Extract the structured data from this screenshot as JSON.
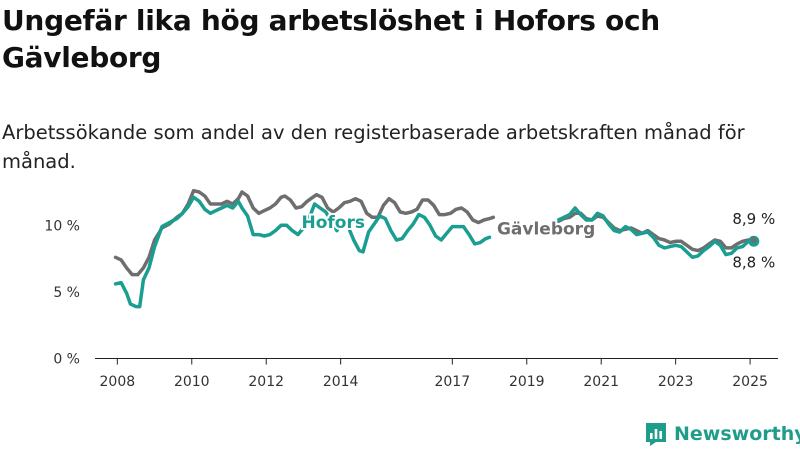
{
  "title": "Ungefär lika hög arbetslöshet i Hofors och Gävleborg",
  "subtitle": "Arbetssökande som andel av den registerbaserade arbetskraften månad för månad.",
  "brand": {
    "name": "Newsworthy",
    "color": "#1f9d8b"
  },
  "chart_data": {
    "type": "line",
    "ylim": [
      0,
      12.5
    ],
    "yticks": [
      {
        "value": 0,
        "label": "0 %"
      },
      {
        "value": 5,
        "label": "5 %"
      },
      {
        "value": 10,
        "label": "10 %"
      }
    ],
    "xlim": [
      2007.4,
      2025.75
    ],
    "xticks": [
      {
        "value": 2008,
        "label": "2008"
      },
      {
        "value": 2010,
        "label": "2010"
      },
      {
        "value": 2012,
        "label": "2012"
      },
      {
        "value": 2014,
        "label": "2014"
      },
      {
        "value": 2017,
        "label": "2017"
      },
      {
        "value": 2019,
        "label": "2019"
      },
      {
        "value": 2021,
        "label": "2021"
      },
      {
        "value": 2023,
        "label": "2023"
      },
      {
        "value": 2025,
        "label": "2025"
      }
    ],
    "grid": false,
    "series": [
      {
        "name": "Gävleborg",
        "color": "#6e6e6e",
        "end_label": "8,9 %",
        "segments": [
          [
            [
              2007.95,
              7.6
            ],
            [
              2008.1,
              7.4
            ],
            [
              2008.25,
              6.8
            ],
            [
              2008.4,
              6.3
            ],
            [
              2008.55,
              6.3
            ],
            [
              2008.7,
              6.8
            ],
            [
              2008.85,
              7.6
            ],
            [
              2009.0,
              8.9
            ],
            [
              2009.2,
              9.8
            ],
            [
              2009.4,
              10.1
            ],
            [
              2009.6,
              10.6
            ],
            [
              2009.75,
              10.9
            ],
            [
              2009.9,
              11.6
            ],
            [
              2010.05,
              12.6
            ],
            [
              2010.2,
              12.5
            ],
            [
              2010.35,
              12.2
            ],
            [
              2010.5,
              11.6
            ],
            [
              2010.65,
              11.6
            ],
            [
              2010.8,
              11.6
            ],
            [
              2010.95,
              11.8
            ],
            [
              2011.1,
              11.6
            ],
            [
              2011.25,
              12.0
            ],
            [
              2011.35,
              12.5
            ],
            [
              2011.5,
              12.2
            ],
            [
              2011.65,
              11.3
            ],
            [
              2011.8,
              10.9
            ],
            [
              2011.95,
              11.1
            ],
            [
              2012.1,
              11.3
            ],
            [
              2012.25,
              11.6
            ],
            [
              2012.4,
              12.1
            ],
            [
              2012.5,
              12.2
            ],
            [
              2012.65,
              11.9
            ],
            [
              2012.8,
              11.3
            ],
            [
              2012.95,
              11.4
            ],
            [
              2013.1,
              11.8
            ],
            [
              2013.25,
              12.1
            ],
            [
              2013.35,
              12.3
            ],
            [
              2013.5,
              12.1
            ],
            [
              2013.65,
              11.3
            ],
            [
              2013.8,
              11.0
            ],
            [
              2013.95,
              11.3
            ],
            [
              2014.1,
              11.7
            ],
            [
              2014.25,
              11.8
            ],
            [
              2014.4,
              12.0
            ],
            [
              2014.55,
              11.8
            ],
            [
              2014.7,
              10.9
            ],
            [
              2014.85,
              10.6
            ],
            [
              2015.0,
              10.6
            ],
            [
              2015.15,
              11.5
            ],
            [
              2015.3,
              12.0
            ],
            [
              2015.45,
              11.7
            ],
            [
              2015.6,
              11.0
            ],
            [
              2015.75,
              10.9
            ],
            [
              2015.9,
              11.0
            ],
            [
              2016.05,
              11.2
            ],
            [
              2016.2,
              11.9
            ],
            [
              2016.35,
              11.9
            ],
            [
              2016.5,
              11.5
            ],
            [
              2016.65,
              10.8
            ],
            [
              2016.8,
              10.8
            ],
            [
              2016.95,
              10.9
            ],
            [
              2017.1,
              11.2
            ],
            [
              2017.25,
              11.3
            ],
            [
              2017.4,
              11.0
            ],
            [
              2017.55,
              10.4
            ],
            [
              2017.7,
              10.2
            ],
            [
              2017.85,
              10.4
            ],
            [
              2018.0,
              10.5
            ],
            [
              2018.1,
              10.6
            ]
          ],
          [
            [
              2019.85,
              10.3
            ],
            [
              2020.0,
              10.5
            ],
            [
              2020.15,
              10.6
            ],
            [
              2020.3,
              10.9
            ],
            [
              2020.45,
              10.9
            ],
            [
              2020.6,
              10.5
            ],
            [
              2020.75,
              10.4
            ],
            [
              2020.9,
              10.7
            ],
            [
              2021.05,
              10.6
            ],
            [
              2021.2,
              10.2
            ],
            [
              2021.35,
              9.8
            ],
            [
              2021.5,
              9.6
            ],
            [
              2021.65,
              9.7
            ],
            [
              2021.8,
              9.8
            ],
            [
              2021.95,
              9.6
            ],
            [
              2022.1,
              9.4
            ],
            [
              2022.25,
              9.6
            ],
            [
              2022.4,
              9.3
            ],
            [
              2022.55,
              9.0
            ],
            [
              2022.7,
              8.9
            ],
            [
              2022.85,
              8.7
            ],
            [
              2023.0,
              8.8
            ],
            [
              2023.15,
              8.8
            ],
            [
              2023.3,
              8.5
            ],
            [
              2023.45,
              8.2
            ],
            [
              2023.6,
              8.1
            ],
            [
              2023.75,
              8.3
            ],
            [
              2023.9,
              8.6
            ],
            [
              2024.05,
              8.9
            ],
            [
              2024.2,
              8.8
            ],
            [
              2024.35,
              8.3
            ],
            [
              2024.5,
              8.3
            ],
            [
              2024.65,
              8.6
            ],
            [
              2024.8,
              8.8
            ],
            [
              2024.95,
              8.9
            ],
            [
              2025.1,
              8.9
            ]
          ]
        ]
      },
      {
        "name": "Hofors",
        "color": "#1a9e91",
        "end_label": "8,8 %",
        "segments": [
          [
            [
              2007.95,
              5.6
            ],
            [
              2008.1,
              5.7
            ],
            [
              2008.25,
              4.9
            ],
            [
              2008.35,
              4.1
            ],
            [
              2008.5,
              3.9
            ],
            [
              2008.6,
              3.9
            ],
            [
              2008.7,
              5.9
            ],
            [
              2008.85,
              6.8
            ],
            [
              2009.0,
              8.4
            ],
            [
              2009.2,
              9.9
            ],
            [
              2009.4,
              10.2
            ],
            [
              2009.6,
              10.5
            ],
            [
              2009.75,
              10.9
            ],
            [
              2009.9,
              11.4
            ],
            [
              2010.05,
              12.1
            ],
            [
              2010.2,
              11.8
            ],
            [
              2010.35,
              11.2
            ],
            [
              2010.5,
              10.9
            ],
            [
              2010.65,
              11.1
            ],
            [
              2010.8,
              11.3
            ],
            [
              2010.95,
              11.5
            ],
            [
              2011.1,
              11.3
            ],
            [
              2011.25,
              11.8
            ],
            [
              2011.35,
              11.3
            ],
            [
              2011.5,
              10.7
            ],
            [
              2011.65,
              9.3
            ],
            [
              2011.8,
              9.3
            ],
            [
              2011.95,
              9.2
            ],
            [
              2012.1,
              9.3
            ],
            [
              2012.25,
              9.6
            ],
            [
              2012.4,
              10.0
            ],
            [
              2012.55,
              10.0
            ],
            [
              2012.7,
              9.6
            ],
            [
              2012.85,
              9.3
            ],
            [
              2013.0,
              9.8
            ],
            [
              2013.15,
              10.5
            ],
            [
              2013.3,
              11.6
            ],
            [
              2013.45,
              11.3
            ],
            [
              2013.6,
              11.0
            ],
            [
              2013.75,
              10.3
            ],
            [
              2013.9,
              9.6
            ],
            [
              2014.05,
              10.3
            ],
            [
              2014.2,
              9.9
            ],
            [
              2014.35,
              8.9
            ],
            [
              2014.5,
              8.1
            ],
            [
              2014.6,
              8.0
            ],
            [
              2014.75,
              9.5
            ],
            [
              2014.9,
              10.1
            ],
            [
              2015.05,
              10.7
            ],
            [
              2015.2,
              10.5
            ],
            [
              2015.35,
              9.6
            ],
            [
              2015.5,
              8.9
            ],
            [
              2015.65,
              9.0
            ],
            [
              2015.8,
              9.6
            ],
            [
              2015.95,
              10.1
            ],
            [
              2016.1,
              10.8
            ],
            [
              2016.25,
              10.6
            ],
            [
              2016.4,
              10.0
            ],
            [
              2016.55,
              9.2
            ],
            [
              2016.7,
              8.9
            ],
            [
              2016.85,
              9.4
            ],
            [
              2017.0,
              9.9
            ],
            [
              2017.15,
              9.9
            ],
            [
              2017.3,
              9.9
            ],
            [
              2017.45,
              9.3
            ],
            [
              2017.6,
              8.6
            ],
            [
              2017.75,
              8.7
            ],
            [
              2017.9,
              9.0
            ],
            [
              2018.0,
              9.1
            ]
          ],
          [
            [
              2019.85,
              10.4
            ],
            [
              2020.0,
              10.6
            ],
            [
              2020.15,
              10.8
            ],
            [
              2020.3,
              11.3
            ],
            [
              2020.45,
              10.8
            ],
            [
              2020.6,
              10.4
            ],
            [
              2020.75,
              10.4
            ],
            [
              2020.9,
              10.9
            ],
            [
              2021.05,
              10.7
            ],
            [
              2021.2,
              10.1
            ],
            [
              2021.35,
              9.6
            ],
            [
              2021.5,
              9.5
            ],
            [
              2021.65,
              9.9
            ],
            [
              2021.8,
              9.7
            ],
            [
              2021.95,
              9.3
            ],
            [
              2022.1,
              9.4
            ],
            [
              2022.25,
              9.5
            ],
            [
              2022.4,
              9.1
            ],
            [
              2022.55,
              8.5
            ],
            [
              2022.7,
              8.3
            ],
            [
              2022.85,
              8.4
            ],
            [
              2023.0,
              8.5
            ],
            [
              2023.15,
              8.4
            ],
            [
              2023.3,
              8.0
            ],
            [
              2023.45,
              7.6
            ],
            [
              2023.6,
              7.7
            ],
            [
              2023.75,
              8.1
            ],
            [
              2023.9,
              8.4
            ],
            [
              2024.05,
              8.8
            ],
            [
              2024.2,
              8.5
            ],
            [
              2024.35,
              7.8
            ],
            [
              2024.5,
              7.9
            ],
            [
              2024.65,
              8.3
            ],
            [
              2024.8,
              8.4
            ],
            [
              2024.95,
              8.8
            ],
            [
              2025.1,
              8.8
            ]
          ]
        ]
      }
    ]
  }
}
